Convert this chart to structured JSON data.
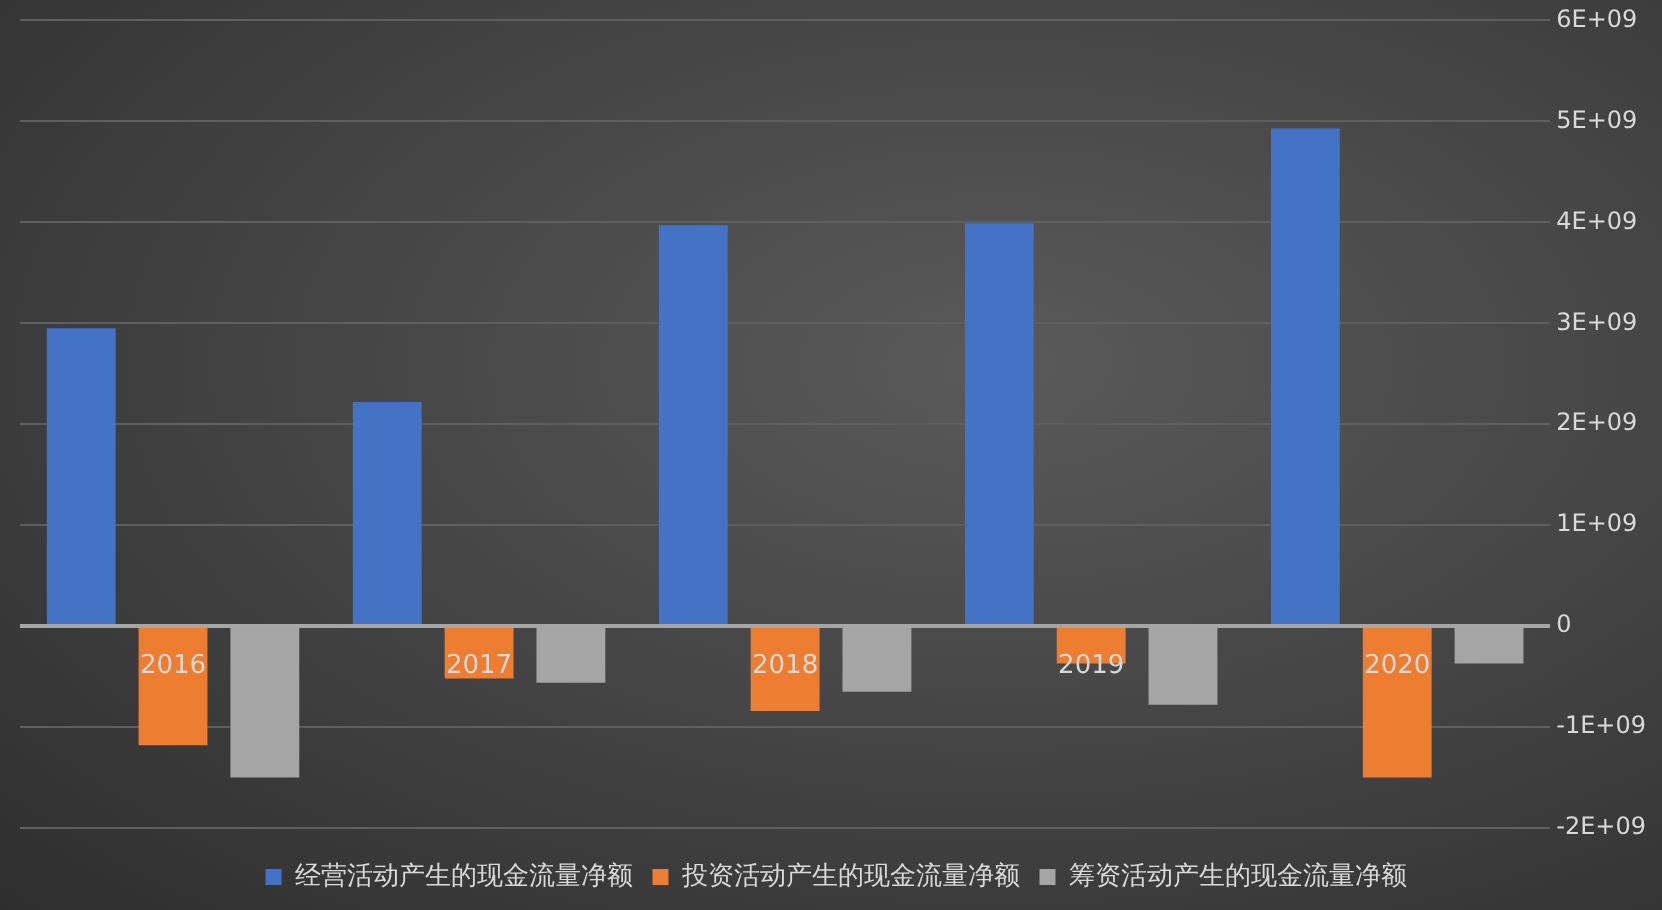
{
  "chart_data": {
    "type": "bar",
    "categories": [
      "2016",
      "2017",
      "2018",
      "2019",
      "2020"
    ],
    "series": [
      {
        "name": "经营活动产生的现金流量净额",
        "color": "#4472c4",
        "values": [
          2950000000.0,
          2220000000.0,
          3970000000.0,
          3990000000.0,
          4930000000.0
        ]
      },
      {
        "name": "投资活动产生的现金流量净额",
        "color": "#ed7d31",
        "values": [
          -1180000000.0,
          -520000000.0,
          -840000000.0,
          -370000000.0,
          -1500000000.0
        ]
      },
      {
        "name": "筹资活动产生的现金流量净额",
        "color": "#a5a5a5",
        "values": [
          -1500000000.0,
          -560000000.0,
          -650000000.0,
          -780000000.0,
          -370000000.0
        ]
      }
    ],
    "ylim": [
      -2000000000.0,
      6000000000.0
    ],
    "yticks": [
      {
        "value": -2000000000.0,
        "label": "-2E+09"
      },
      {
        "value": -1000000000.0,
        "label": "-1E+09"
      },
      {
        "value": 0,
        "label": "0"
      },
      {
        "value": 1000000000.0,
        "label": "1E+09"
      },
      {
        "value": 2000000000.0,
        "label": "2E+09"
      },
      {
        "value": 3000000000.0,
        "label": "3E+09"
      },
      {
        "value": 4000000000.0,
        "label": "4E+09"
      },
      {
        "value": 5000000000.0,
        "label": "5E+09"
      },
      {
        "value": 6000000000.0,
        "label": "6E+09"
      }
    ],
    "grid": "y",
    "legend": "bottom"
  }
}
